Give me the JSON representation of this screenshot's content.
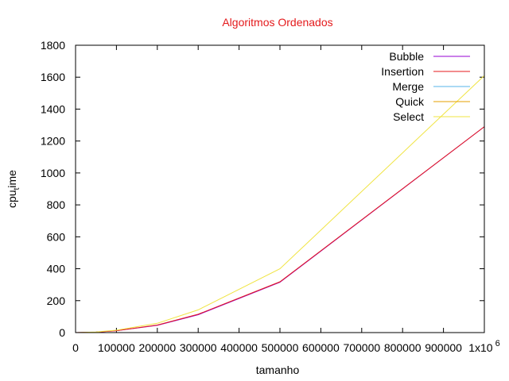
{
  "chart_data": {
    "type": "line",
    "title": "Algoritmos Ordenados",
    "xlabel": "tamanho",
    "ylabel_main": "cpu",
    "ylabel_sub": "t",
    "ylabel_rest": "ime",
    "xlim": [
      0,
      1000000
    ],
    "ylim": [
      0,
      1800
    ],
    "x_ticks": [
      0,
      100000,
      200000,
      300000,
      400000,
      500000,
      600000,
      700000,
      800000,
      900000,
      1000000
    ],
    "x_tick_labels": [
      "0",
      "100000",
      "200000",
      "300000",
      "400000",
      "500000",
      "600000",
      "700000",
      "800000",
      "900000",
      "1x10"
    ],
    "x_tick_exponent": "6",
    "y_ticks": [
      0,
      200,
      400,
      600,
      800,
      1000,
      1200,
      1400,
      1600,
      1800
    ],
    "y_tick_labels": [
      "0",
      "200",
      "400",
      "600",
      "800",
      "1000",
      "1200",
      "1400",
      "1600",
      "1800"
    ],
    "grid": false,
    "legend_position": "top-right",
    "x": [
      0,
      50000,
      100000,
      200000,
      300000,
      500000,
      1000000
    ],
    "series": [
      {
        "name": "Bubble",
        "color": "#9400d3",
        "values": [
          0,
          3,
          12,
          45,
          112,
          315,
          1290
        ]
      },
      {
        "name": "Insertion",
        "color": "#e41a1c",
        "values": [
          0,
          3,
          12,
          47,
          115,
          318,
          1290
        ]
      },
      {
        "name": "Merge",
        "color": "#56b4e9",
        "values": [
          0,
          0,
          0,
          0,
          0,
          0,
          0
        ]
      },
      {
        "name": "Quick",
        "color": "#e69f00",
        "values": [
          0,
          0,
          0,
          0,
          0,
          0,
          0
        ]
      },
      {
        "name": "Select",
        "color": "#f0e442",
        "values": [
          0,
          4,
          15,
          58,
          142,
          400,
          1610
        ]
      }
    ]
  }
}
